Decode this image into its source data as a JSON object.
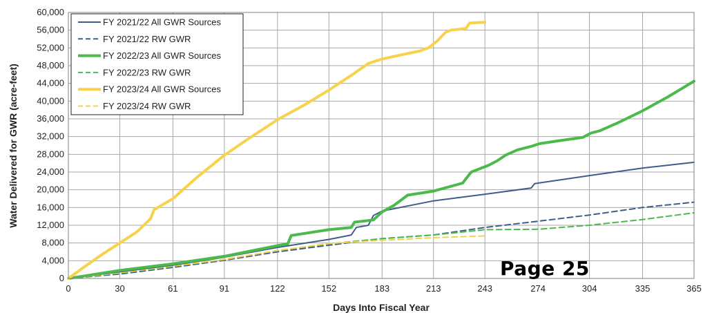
{
  "page_stamp": "Page 25",
  "chart_data": {
    "type": "line",
    "title": "",
    "xlabel": "Days Into Fiscal Year",
    "ylabel": "Water Delivered for GWR (acre-feet)",
    "xlim": [
      0,
      365
    ],
    "ylim": [
      0,
      60000
    ],
    "xticks": [
      0,
      30,
      61,
      91,
      122,
      152,
      183,
      213,
      243,
      274,
      304,
      335,
      365
    ],
    "yticks": [
      0,
      4000,
      8000,
      12000,
      16000,
      20000,
      24000,
      28000,
      32000,
      36000,
      40000,
      44000,
      48000,
      52000,
      56000,
      60000
    ],
    "ytick_labels": [
      "0",
      "4,000",
      "8,000",
      "12,000",
      "16,000",
      "20,000",
      "24,000",
      "28,000",
      "32,000",
      "36,000",
      "40,000",
      "44,000",
      "48,000",
      "52,000",
      "56,000",
      "60,000"
    ],
    "grid": true,
    "legend": "top-left",
    "series": [
      {
        "name": "FY 2021/22 All GWR Sources",
        "color": "#3f5d8a",
        "dash": "solid",
        "width": 2,
        "x": [
          0,
          30,
          61,
          91,
          122,
          152,
          165,
          168,
          175,
          178,
          183,
          213,
          243,
          270,
          272,
          304,
          335,
          365
        ],
        "y": [
          0,
          1500,
          3000,
          4800,
          7000,
          8800,
          9800,
          11500,
          12000,
          14200,
          15200,
          17500,
          19000,
          20400,
          21400,
          23200,
          24900,
          26200
        ]
      },
      {
        "name": "FY 2021/22 RW GWR",
        "color": "#3f5d8a",
        "dash": "dashed",
        "width": 2,
        "x": [
          0,
          30,
          61,
          91,
          122,
          152,
          183,
          213,
          243,
          274,
          304,
          335,
          365
        ],
        "y": [
          0,
          1000,
          2500,
          4100,
          6000,
          7500,
          9000,
          9800,
          11500,
          12900,
          14300,
          16000,
          17200
        ]
      },
      {
        "name": "FY 2022/23 All GWR Sources",
        "color": "#4cb94c",
        "dash": "solid",
        "width": 4,
        "x": [
          0,
          30,
          61,
          91,
          122,
          128,
          130,
          152,
          165,
          167,
          178,
          183,
          190,
          198,
          213,
          230,
          235,
          245,
          250,
          255,
          262,
          270,
          275,
          285,
          300,
          305,
          310,
          320,
          335,
          350,
          365
        ],
        "y": [
          0,
          1800,
          3300,
          5000,
          7400,
          7800,
          9700,
          11000,
          11500,
          12700,
          13200,
          15000,
          16500,
          18800,
          19700,
          21500,
          24000,
          25500,
          26500,
          27800,
          29000,
          29800,
          30400,
          31000,
          31800,
          32800,
          33300,
          35000,
          37800,
          41000,
          44500
        ]
      },
      {
        "name": "FY 2022/23 RW GWR",
        "color": "#4cb94c",
        "dash": "dashed",
        "width": 2,
        "x": [
          0,
          30,
          61,
          91,
          122,
          152,
          183,
          213,
          243,
          274,
          304,
          335,
          365
        ],
        "y": [
          0,
          1200,
          2700,
          4300,
          6300,
          7800,
          9000,
          9800,
          11000,
          11100,
          12000,
          13300,
          14800
        ]
      },
      {
        "name": "FY 2023/24 All GWR Sources",
        "color": "#f7d24a",
        "dash": "solid",
        "width": 4,
        "x": [
          0,
          10,
          20,
          30,
          40,
          48,
          50,
          61,
          75,
          91,
          105,
          122,
          138,
          152,
          165,
          175,
          183,
          195,
          205,
          210,
          215,
          220,
          223,
          232,
          234,
          243
        ],
        "y": [
          0,
          2800,
          5500,
          8000,
          10500,
          13500,
          15500,
          18000,
          22800,
          27800,
          31500,
          35800,
          39200,
          42500,
          45800,
          48500,
          49500,
          50500,
          51300,
          52000,
          53500,
          55500,
          56000,
          56400,
          57600,
          57800
        ]
      },
      {
        "name": "FY 2023/24 RW GWR",
        "color": "#f7d24a",
        "dash": "dashed",
        "width": 2,
        "x": [
          0,
          30,
          61,
          91,
          122,
          152,
          183,
          213,
          243
        ],
        "y": [
          0,
          1300,
          2800,
          4300,
          6300,
          7900,
          8600,
          9200,
          9600
        ]
      }
    ]
  }
}
